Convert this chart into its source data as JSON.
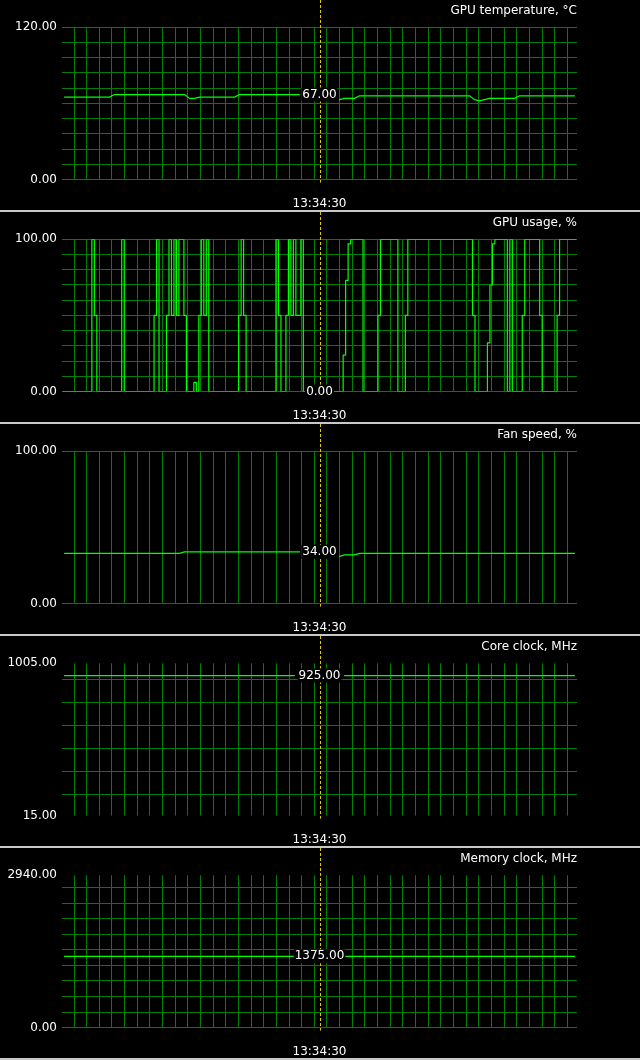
{
  "chart_data": [
    {
      "type": "line",
      "title": "GPU temperature, °C",
      "categories": [
        null,
        null,
        null,
        null,
        null,
        null,
        null,
        null,
        null,
        null,
        null,
        null,
        null,
        null,
        null,
        null,
        null,
        null,
        null,
        null,
        null,
        null,
        null,
        null,
        null,
        null,
        null,
        null,
        null,
        null,
        null,
        null,
        null,
        null,
        null,
        null,
        null,
        null,
        null,
        null,
        null,
        null,
        null,
        null,
        null,
        null,
        null,
        null,
        null,
        null,
        null,
        "13:34:30",
        null,
        null,
        null,
        null,
        null,
        null,
        null,
        null,
        null,
        null,
        null,
        null,
        null,
        null,
        null,
        null,
        null,
        null,
        null,
        null,
        null,
        null,
        null,
        null,
        null,
        null,
        null,
        null,
        null,
        null,
        null,
        null,
        null,
        null,
        null,
        null,
        null,
        null,
        null,
        null,
        null,
        null,
        null,
        null,
        null,
        null,
        null,
        null,
        null,
        null,
        null
      ],
      "values": [
        65,
        65,
        65,
        65,
        65,
        65,
        65,
        65,
        65,
        65,
        67,
        67,
        67,
        67,
        67,
        67,
        67,
        67,
        67,
        67,
        67,
        67,
        67,
        67,
        67,
        64,
        64,
        65,
        65,
        65,
        65,
        65,
        65,
        65,
        65,
        67,
        67,
        67,
        67,
        67,
        67,
        67,
        67,
        67,
        67,
        67,
        67,
        67,
        null,
        null,
        null,
        null,
        null,
        null,
        null,
        63,
        64,
        64,
        64,
        66,
        66,
        66,
        66,
        66,
        66,
        66,
        66,
        66,
        66,
        66,
        66,
        66,
        66,
        66,
        66,
        66,
        66,
        66,
        66,
        66,
        66,
        66,
        63,
        62,
        63,
        64,
        64,
        64,
        64,
        64,
        64,
        66,
        66,
        66,
        66,
        66,
        66,
        66,
        66,
        66,
        66,
        66,
        66
      ],
      "color": "#00ff00",
      "ylim": [
        0,
        120
      ],
      "yticks": [
        {
          "value": 0,
          "label": "0.00"
        },
        {
          "value": 12,
          "label": null
        },
        {
          "value": 24,
          "label": null
        },
        {
          "value": 36,
          "label": null
        },
        {
          "value": 48,
          "label": null
        },
        {
          "value": 60,
          "label": null
        },
        {
          "value": 72,
          "label": null
        },
        {
          "value": 84,
          "label": null
        },
        {
          "value": 96,
          "label": null
        },
        {
          "value": 108,
          "label": null
        },
        {
          "value": 120,
          "label": "120.00"
        }
      ],
      "grid": true,
      "ref_lines": [
        {
          "axis": "x",
          "value": "13:34:30",
          "color": "#e0c800",
          "line_style": "dashed"
        }
      ],
      "annotations": [
        {
          "text": "67.00",
          "x": "13:34:30",
          "y": 67
        }
      ]
    },
    {
      "type": "step",
      "title": "GPU usage, %",
      "categories": [
        null,
        null,
        null,
        null,
        null,
        null,
        null,
        null,
        null,
        null,
        null,
        null,
        null,
        null,
        null,
        null,
        null,
        null,
        null,
        null,
        null,
        null,
        null,
        null,
        null,
        null,
        null,
        null,
        null,
        null,
        null,
        null,
        null,
        null,
        null,
        null,
        null,
        null,
        null,
        null,
        null,
        null,
        null,
        null,
        null,
        null,
        null,
        null,
        null,
        null,
        null,
        null,
        null,
        null,
        null,
        null,
        null,
        null,
        null,
        null,
        null,
        null,
        null,
        null,
        null,
        null,
        null,
        null,
        null,
        null,
        null,
        null,
        null,
        null,
        null,
        null,
        null,
        null,
        null,
        null,
        null,
        null,
        null,
        null,
        null,
        null,
        null,
        null,
        null,
        null,
        null,
        null,
        null,
        null,
        null,
        null,
        null,
        null,
        null,
        null,
        null,
        null,
        null,
        "13:34:30",
        null,
        null,
        null,
        null,
        null,
        null,
        null,
        null,
        null,
        null,
        null,
        null,
        null,
        null,
        null,
        null,
        null,
        null,
        null,
        null,
        null,
        null,
        null,
        null,
        null,
        null,
        null,
        null,
        null,
        null,
        null,
        null,
        null,
        null,
        null,
        null,
        null,
        null,
        null,
        null,
        null,
        null,
        null,
        null,
        null,
        null,
        null,
        null,
        null,
        null,
        null,
        null,
        null,
        null,
        null,
        null,
        null,
        null,
        null,
        null,
        null,
        null,
        null,
        null,
        null,
        null,
        null,
        null,
        null,
        null,
        null,
        null,
        null,
        null,
        null,
        null,
        null,
        null,
        null,
        null,
        null,
        null,
        null,
        null,
        null,
        null,
        null,
        null,
        null,
        null,
        null,
        null,
        null,
        null,
        null,
        null,
        null,
        null,
        null,
        null,
        null,
        null,
        null
      ],
      "values": [
        0,
        0,
        0,
        0,
        0,
        0,
        0,
        0,
        0,
        0,
        0,
        0,
        100,
        50,
        0,
        0,
        0,
        0,
        0,
        0,
        0,
        0,
        0,
        0,
        100,
        0,
        0,
        0,
        0,
        0,
        0,
        0,
        0,
        0,
        0,
        0,
        0,
        50,
        100,
        0,
        0,
        0,
        50,
        100,
        50,
        100,
        50,
        100,
        100,
        50,
        0,
        0,
        0,
        6,
        0,
        50,
        100,
        50,
        100,
        0,
        0,
        0,
        0,
        0,
        0,
        0,
        0,
        0,
        0,
        0,
        0,
        50,
        100,
        50,
        0,
        0,
        0,
        0,
        0,
        0,
        0,
        0,
        0,
        0,
        0,
        0,
        100,
        50,
        0,
        0,
        50,
        100,
        50,
        100,
        50,
        50,
        100,
        0,
        null,
        null,
        null,
        null,
        null,
        null,
        null,
        null,
        null,
        null,
        null,
        0,
        0,
        0,
        0,
        24,
        73,
        97,
        100,
        100,
        100,
        100,
        100,
        0,
        0,
        0,
        0,
        0,
        0,
        50,
        100,
        100,
        100,
        100,
        100,
        100,
        100,
        0,
        0,
        0,
        50,
        100,
        100,
        100,
        100,
        100,
        100,
        100,
        100,
        100,
        100,
        100,
        100,
        100,
        100,
        100,
        100,
        100,
        100,
        100,
        100,
        100,
        100,
        100,
        100,
        100,
        100,
        50,
        0,
        0,
        0,
        0,
        0,
        32,
        70,
        97,
        100,
        100,
        100,
        100,
        100,
        0,
        100,
        0,
        0,
        0,
        0,
        50,
        100,
        100,
        100,
        100,
        100,
        100,
        50,
        0,
        0,
        0,
        0,
        0,
        0,
        50,
        100,
        100,
        100,
        100,
        100,
        100,
        100
      ],
      "color": "#00ff00",
      "ylim": [
        0,
        100
      ],
      "yticks": [
        {
          "value": 0,
          "label": "0.00"
        },
        {
          "value": 10,
          "label": null
        },
        {
          "value": 20,
          "label": null
        },
        {
          "value": 30,
          "label": null
        },
        {
          "value": 40,
          "label": null
        },
        {
          "value": 50,
          "label": null
        },
        {
          "value": 60,
          "label": null
        },
        {
          "value": 70,
          "label": null
        },
        {
          "value": 80,
          "label": null
        },
        {
          "value": 90,
          "label": null
        },
        {
          "value": 100,
          "label": "100.00"
        }
      ],
      "grid": true,
      "ref_lines": [
        {
          "axis": "x",
          "value": "13:34:30",
          "color": "#e0c800",
          "line_style": "dashed"
        }
      ],
      "annotations": [
        {
          "text": "0.00",
          "x": "13:34:30",
          "y": 0
        }
      ]
    },
    {
      "type": "line",
      "title": "Fan speed, %",
      "categories": [
        null,
        null,
        null,
        null,
        null,
        null,
        null,
        null,
        null,
        null,
        null,
        null,
        null,
        null,
        null,
        null,
        null,
        null,
        null,
        null,
        null,
        null,
        null,
        null,
        null,
        null,
        null,
        null,
        null,
        null,
        null,
        null,
        null,
        null,
        null,
        null,
        null,
        null,
        null,
        null,
        null,
        null,
        null,
        null,
        null,
        null,
        null,
        null,
        null,
        null,
        null,
        "13:34:30",
        null,
        null,
        null,
        null,
        null,
        null,
        null,
        null,
        null,
        null,
        null,
        null,
        null,
        null,
        null,
        null,
        null,
        null,
        null,
        null,
        null,
        null,
        null,
        null,
        null,
        null,
        null,
        null,
        null,
        null,
        null,
        null,
        null,
        null,
        null,
        null,
        null,
        null,
        null,
        null,
        null,
        null,
        null,
        null,
        null,
        null,
        null,
        null,
        null,
        null,
        null
      ],
      "values": [
        33,
        33,
        33,
        33,
        33,
        33,
        33,
        33,
        33,
        33,
        33,
        33,
        33,
        33,
        33,
        33,
        33,
        33,
        33,
        33,
        33,
        33,
        33,
        33,
        34,
        34,
        34,
        34,
        34,
        34,
        34,
        34,
        34,
        34,
        34,
        34,
        34,
        34,
        34,
        34,
        34,
        34,
        34,
        34,
        34,
        34,
        34,
        34,
        null,
        null,
        null,
        null,
        null,
        null,
        null,
        31,
        32,
        32,
        32,
        33,
        33,
        33,
        33,
        33,
        33,
        33,
        33,
        33,
        33,
        33,
        33,
        33,
        33,
        33,
        33,
        33,
        33,
        33,
        33,
        33,
        33,
        33,
        33,
        33,
        33,
        33,
        33,
        33,
        33,
        33,
        33,
        33,
        33,
        33,
        33,
        33,
        33,
        33,
        33,
        33,
        33,
        33,
        33
      ],
      "color": "#00ff00",
      "ylim": [
        0,
        100
      ],
      "yticks": [
        {
          "value": 0,
          "label": "0.00"
        },
        {
          "value": 100,
          "label": "100.00"
        }
      ],
      "grid": true,
      "ref_lines": [
        {
          "axis": "x",
          "value": "13:34:30",
          "color": "#e0c800",
          "line_style": "dashed"
        }
      ],
      "annotations": [
        {
          "text": "34.00",
          "x": "13:34:30",
          "y": 34
        }
      ]
    },
    {
      "type": "line",
      "title": "Core clock, MHz",
      "categories": [
        null,
        null,
        null,
        null,
        null,
        null,
        null,
        null,
        null,
        null,
        null,
        null,
        null,
        null,
        null,
        null,
        null,
        null,
        null,
        null,
        null,
        null,
        null,
        null,
        null,
        null,
        null,
        null,
        null,
        null,
        null,
        null,
        null,
        null,
        null,
        null,
        null,
        null,
        null,
        null,
        null,
        null,
        null,
        null,
        null,
        null,
        null,
        null,
        null,
        null,
        null,
        "13:34:30",
        null,
        null,
        null,
        null,
        null,
        null,
        null,
        null,
        null,
        null,
        null,
        null,
        null,
        null,
        null,
        null,
        null,
        null,
        null,
        null,
        null,
        null,
        null,
        null,
        null,
        null,
        null,
        null,
        null,
        null,
        null,
        null,
        null,
        null,
        null,
        null,
        null,
        null,
        null,
        null,
        null,
        null,
        null,
        null,
        null,
        null,
        null,
        null,
        null,
        null,
        null
      ],
      "values": [
        925,
        925,
        925,
        925,
        925,
        925,
        925,
        925,
        925,
        925,
        925,
        925,
        925,
        925,
        925,
        925,
        925,
        925,
        925,
        925,
        925,
        925,
        925,
        925,
        925,
        925,
        925,
        925,
        925,
        925,
        925,
        925,
        925,
        925,
        925,
        925,
        925,
        925,
        925,
        925,
        925,
        925,
        925,
        925,
        925,
        925,
        925,
        null,
        null,
        null,
        null,
        null,
        null,
        null,
        null,
        null,
        925,
        925,
        925,
        925,
        925,
        925,
        925,
        925,
        925,
        925,
        925,
        925,
        925,
        925,
        925,
        925,
        925,
        925,
        925,
        925,
        925,
        925,
        925,
        925,
        925,
        925,
        925,
        925,
        925,
        925,
        925,
        925,
        925,
        925,
        925,
        925,
        925,
        925,
        925,
        925,
        925,
        925,
        925,
        925,
        925,
        925,
        925
      ],
      "color": "#00ff00",
      "ylim": [
        15,
        1005
      ],
      "yticks": [
        {
          "value": 15,
          "label": "15.00"
        },
        {
          "value": 150,
          "label": null
        },
        {
          "value": 300,
          "label": null
        },
        {
          "value": 450,
          "label": null
        },
        {
          "value": 600,
          "label": null
        },
        {
          "value": 750,
          "label": null
        },
        {
          "value": 900,
          "label": null
        },
        {
          "value": 1005,
          "label": "1005.00"
        }
      ],
      "grid": true,
      "ref_lines": [
        {
          "axis": "x",
          "value": "13:34:30",
          "color": "#e0c800",
          "line_style": "dashed"
        }
      ],
      "annotations": [
        {
          "text": "925.00",
          "x": "13:34:30",
          "y": 925
        }
      ]
    },
    {
      "type": "line",
      "title": "Memory clock, MHz",
      "categories": [
        null,
        null,
        null,
        null,
        null,
        null,
        null,
        null,
        null,
        null,
        null,
        null,
        null,
        null,
        null,
        null,
        null,
        null,
        null,
        null,
        null,
        null,
        null,
        null,
        null,
        null,
        null,
        null,
        null,
        null,
        null,
        null,
        null,
        null,
        null,
        null,
        null,
        null,
        null,
        null,
        null,
        null,
        null,
        null,
        null,
        null,
        null,
        null,
        null,
        null,
        null,
        "13:34:30",
        null,
        null,
        null,
        null,
        null,
        null,
        null,
        null,
        null,
        null,
        null,
        null,
        null,
        null,
        null,
        null,
        null,
        null,
        null,
        null,
        null,
        null,
        null,
        null,
        null,
        null,
        null,
        null,
        null,
        null,
        null,
        null,
        null,
        null,
        null,
        null,
        null,
        null,
        null,
        null,
        null,
        null,
        null,
        null,
        null,
        null,
        null,
        null,
        null,
        null,
        null
      ],
      "values": [
        1375,
        1375,
        1375,
        1375,
        1375,
        1375,
        1375,
        1375,
        1375,
        1375,
        1375,
        1375,
        1375,
        1375,
        1375,
        1375,
        1375,
        1375,
        1375,
        1375,
        1375,
        1375,
        1375,
        1375,
        1375,
        1375,
        1375,
        1375,
        1375,
        1375,
        1375,
        1375,
        1375,
        1375,
        1375,
        1375,
        1375,
        1375,
        1375,
        1375,
        1375,
        1375,
        1375,
        1375,
        1375,
        1375,
        1375,
        null,
        null,
        null,
        null,
        null,
        null,
        null,
        null,
        null,
        1375,
        1375,
        1375,
        1375,
        1375,
        1375,
        1375,
        1375,
        1375,
        1375,
        1375,
        1375,
        1375,
        1375,
        1375,
        1375,
        1375,
        1375,
        1375,
        1375,
        1375,
        1375,
        1375,
        1375,
        1375,
        1375,
        1375,
        1375,
        1375,
        1375,
        1375,
        1375,
        1375,
        1375,
        1375,
        1375,
        1375,
        1375,
        1375,
        1375,
        1375,
        1375,
        1375,
        1375,
        1375,
        1375,
        1375
      ],
      "color": "#00ff00",
      "ylim": [
        0,
        2940
      ],
      "yticks": [
        {
          "value": 0,
          "label": "0.00"
        },
        {
          "value": 300,
          "label": null
        },
        {
          "value": 600,
          "label": null
        },
        {
          "value": 900,
          "label": null
        },
        {
          "value": 1200,
          "label": null
        },
        {
          "value": 1500,
          "label": null
        },
        {
          "value": 1800,
          "label": null
        },
        {
          "value": 2100,
          "label": null
        },
        {
          "value": 2400,
          "label": null
        },
        {
          "value": 2700,
          "label": null
        },
        {
          "value": 2940,
          "label": "2940.00"
        }
      ],
      "grid": true,
      "ref_lines": [
        {
          "axis": "x",
          "value": "13:34:30",
          "color": "#e0c800",
          "line_style": "dashed"
        }
      ],
      "annotations": [
        {
          "text": "1375.00",
          "x": "13:34:30",
          "y": 1375
        }
      ]
    }
  ]
}
